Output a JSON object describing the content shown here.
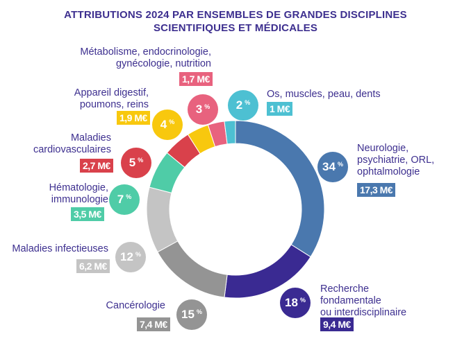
{
  "chart_data": {
    "type": "pie",
    "title": "ATTRIBUTIONS 2024 PAR ENSEMBLES DE GRANDES DISCIPLINES SCIENTIFIQUES ET MÉDICALES",
    "title_lines": [
      "ATTRIBUTIONS 2024 PAR ENSEMBLES DE GRANDES DISCIPLINES",
      "SCIENTIFIQUES ET MÉDICALES"
    ],
    "categories": [
      "Neurologie, psychiatrie, ORL, ophtalmologie",
      "Recherche fondamentale ou interdisciplinaire",
      "Cancérologie",
      "Maladies infectieuses",
      "Hématologie, immunologie",
      "Maladies cardiovasculaires",
      "Appareil digestif, poumons, reins",
      "Métabolisme, endocrinologie, gynécologie, nutrition",
      "Os, muscles, peau, dents"
    ],
    "values": [
      34,
      18,
      15,
      12,
      7,
      5,
      4,
      3,
      2
    ],
    "amounts": [
      "17,3 M€",
      "9,4 M€",
      "7,4 M€",
      "6,2 M€",
      "3,5 M€",
      "2,7 M€",
      "1,9 M€",
      "1,7 M€",
      "1 M€"
    ],
    "colors": [
      "#4a78ae",
      "#3a2a92",
      "#949494",
      "#c4c4c4",
      "#4fcca7",
      "#d9414b",
      "#f8c80e",
      "#e8627e",
      "#4dc0d2"
    ],
    "percent_symbol": "%"
  },
  "labels": {
    "neuro": [
      "Neurologie,",
      "psychiatrie, ORL,",
      "ophtalmologie"
    ],
    "recherche": [
      "Recherche",
      "fondamentale",
      "ou interdisciplinaire"
    ],
    "cancer": [
      "Cancérologie"
    ],
    "infect": [
      "Maladies infectieuses"
    ],
    "hemato": [
      "Hématologie,",
      "immunologie"
    ],
    "cardio": [
      "Maladies",
      "cardiovasculaires"
    ],
    "digest": [
      "Appareil digestif,",
      "poumons, reins"
    ],
    "metab": [
      "Métabolisme, endocrinologie,",
      "gynécologie, nutrition"
    ],
    "os": [
      "Os, muscles, peau, dents"
    ]
  }
}
